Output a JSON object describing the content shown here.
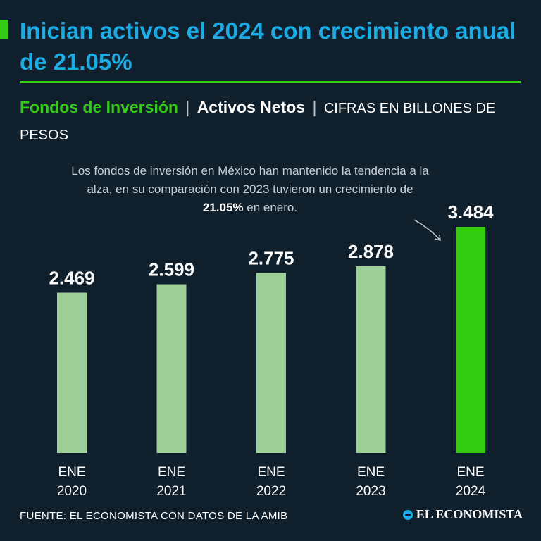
{
  "header": {
    "title": "Inician activos el 2024 con crecimiento anual de 21.05%",
    "subtitle_part1": "Fondos de Inversión",
    "subtitle_sep": "|",
    "subtitle_part2": "Activos Netos",
    "subtitle_part3": "CIFRAS EN BILLONES DE PESOS"
  },
  "annotation": {
    "text_before": "Los fondos de inversión en México han mantenido la tendencia a la alza, en su comparación con 2023 tuvieron un crecimiento de ",
    "highlight": "21.05%",
    "text_after": " en enero."
  },
  "footer": {
    "source": "FUENTE: EL ECONOMISTA CON DATOS DE LA AMIB",
    "logo": "EL ECONOMISTA"
  },
  "colors": {
    "background": "#0f1f2c",
    "title": "#17aee8",
    "accent": "#33cc11",
    "bar_regular": "#9ecf98",
    "bar_highlight": "#33cc11"
  },
  "chart_data": {
    "type": "bar",
    "title": "Fondos de Inversión | Activos Netos",
    "ylabel": "Billones de pesos",
    "categories": [
      [
        "ENE",
        "2020"
      ],
      [
        "ENE",
        "2021"
      ],
      [
        "ENE",
        "2022"
      ],
      [
        "ENE",
        "2023"
      ],
      [
        "ENE",
        "2024"
      ]
    ],
    "values": [
      2.469,
      2.599,
      2.775,
      2.878,
      3.484
    ],
    "value_labels": [
      "2.469",
      "2.599",
      "2.775",
      "2.878",
      "3.484"
    ],
    "highlight_index": 4,
    "ylim": [
      0,
      3.484
    ],
    "grid": false,
    "legend": "none"
  }
}
